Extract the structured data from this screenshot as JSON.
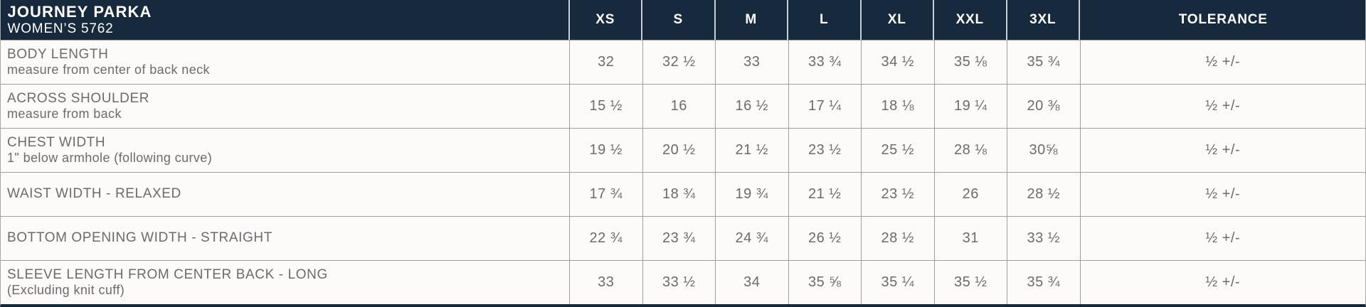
{
  "header": {
    "title": "JOURNEY PARKA",
    "subtitle": "WOMEN’S 5762",
    "sizes": [
      "XS",
      "S",
      "M",
      "L",
      "XL",
      "XXL",
      "3XL"
    ],
    "tolerance_label": "TOLERANCE"
  },
  "colors": {
    "header_bg": "#17293d",
    "header_text": "#ffffff",
    "body_text": "#6b6b6b",
    "grid_line": "#9f9f9f"
  },
  "rows": [
    {
      "label": "BODY LENGTH",
      "note": "measure from center of back neck",
      "values": [
        "32",
        "32 ½",
        "33",
        "33 ¾",
        "34 ½",
        "35 ⅛",
        "35 ¾"
      ],
      "tolerance": "½ +/-"
    },
    {
      "label": "ACROSS SHOULDER",
      "note": "measure from back",
      "values": [
        "15 ½",
        "16",
        "16 ½",
        "17 ¼",
        "18 ⅛",
        "19 ¼",
        "20 ⅜"
      ],
      "tolerance": "½ +/-"
    },
    {
      "label": "CHEST WIDTH",
      "note": "1\" below armhole (following curve)",
      "values": [
        "19 ½",
        "20 ½",
        "21 ½",
        "23 ½",
        "25 ½",
        "28 ⅛",
        "30⅝"
      ],
      "tolerance": "½ +/-"
    },
    {
      "label": "WAIST WIDTH - RELAXED",
      "note": "",
      "values": [
        "17 ¾",
        "18 ¾",
        "19 ¾",
        "21 ½",
        "23 ½",
        "26",
        "28 ½"
      ],
      "tolerance": "½ +/-"
    },
    {
      "label": "BOTTOM OPENING WIDTH - STRAIGHT",
      "note": "",
      "values": [
        "22 ¾",
        "23 ¾",
        "24 ¾",
        "26 ½",
        "28 ½",
        "31",
        "33 ½"
      ],
      "tolerance": "½ +/-"
    },
    {
      "label": "SLEEVE LENGTH FROM CENTER BACK - LONG",
      "note": "(Excluding knit cuff)",
      "values": [
        "33",
        "33 ½",
        "34",
        "35 ⅝",
        "35 ¼",
        "35 ½",
        "35 ¾"
      ],
      "tolerance": "½ +/-"
    }
  ]
}
